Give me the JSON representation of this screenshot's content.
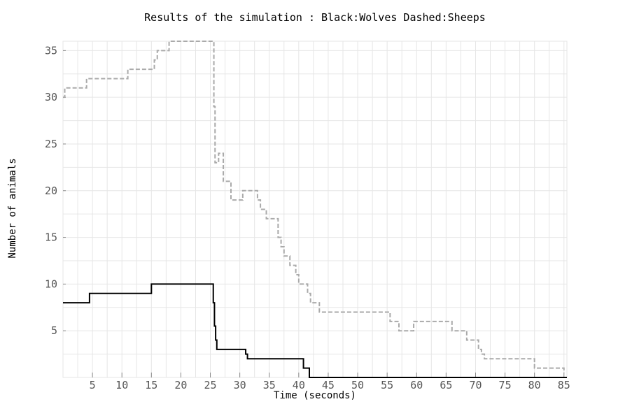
{
  "chart_data": {
    "type": "line",
    "title": "Results of the simulation : Black:Wolves Dashed:Sheeps",
    "xlabel": "Time (seconds)",
    "ylabel": "Number of animals",
    "xlim": [
      0,
      85.5
    ],
    "ylim": [
      0,
      36
    ],
    "xticks": [
      5,
      10,
      15,
      20,
      25,
      30,
      35,
      40,
      45,
      50,
      55,
      60,
      65,
      70,
      75,
      80,
      85
    ],
    "yticks": [
      5,
      10,
      15,
      20,
      25,
      30,
      35
    ],
    "grid": true,
    "step": true,
    "series": [
      {
        "name": "Wolves",
        "color": "#000000",
        "style": "solid",
        "x": [
          0,
          4.5,
          4.6,
          15.0,
          15.1,
          25.5,
          25.7,
          25.9,
          26.1,
          26.3,
          26.5,
          31.0,
          31.3,
          40.8,
          41.0,
          41.8,
          85.5
        ],
        "y": [
          8,
          9,
          9,
          10,
          10,
          8,
          5.5,
          4,
          3,
          3,
          3,
          2.5,
          2,
          1,
          1,
          0,
          0
        ]
      },
      {
        "name": "Sheeps",
        "color": "#aaaaaa",
        "style": "dashed",
        "x": [
          0,
          0.3,
          4.0,
          11.0,
          15.5,
          16.0,
          18.0,
          25.6,
          25.8,
          26.4,
          27.2,
          28.5,
          30.5,
          33.0,
          33.5,
          34.5,
          36.5,
          37.0,
          37.5,
          38.5,
          39.5,
          40.0,
          41.5,
          42.0,
          43.5,
          55.5,
          57.0,
          59.5,
          66.0,
          68.5,
          70.5,
          71.0,
          71.5,
          80.0,
          85.0
        ],
        "y": [
          30,
          31,
          32,
          33,
          34,
          35,
          36,
          29,
          23,
          24,
          21,
          19,
          20,
          19,
          18,
          17,
          15,
          14,
          13,
          12,
          11,
          10,
          9,
          8,
          7,
          6,
          5,
          6,
          5,
          4,
          3,
          2.5,
          2,
          1,
          0.5
        ]
      }
    ]
  }
}
